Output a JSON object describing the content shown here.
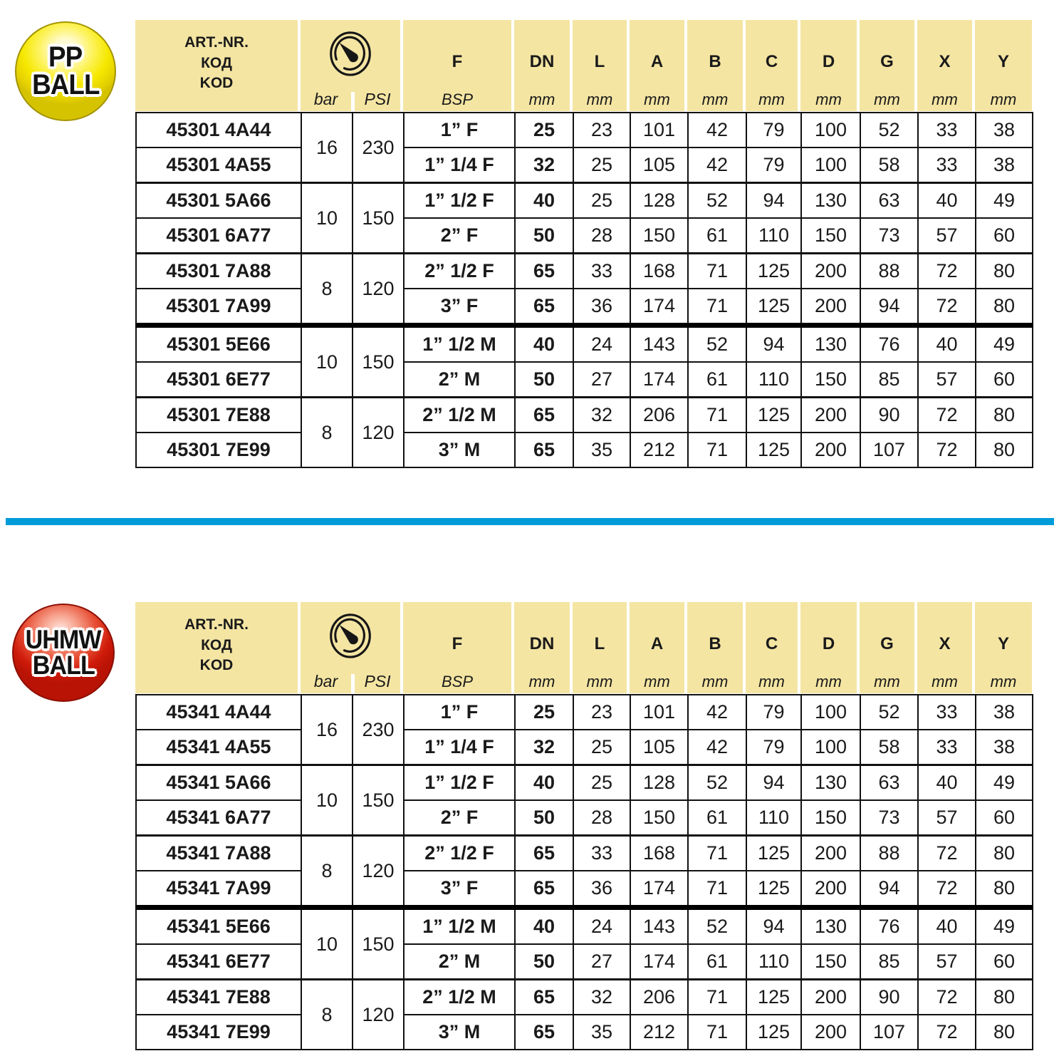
{
  "colors": {
    "header_bg": "#f4e5a3",
    "divider_blue": "#009cd9",
    "pp_badge_yellow": "#f6e800",
    "uhmw_badge_red": "#ce1a0a",
    "border_black": "#111111"
  },
  "header": {
    "art_lines": [
      "ART.-NR.",
      "КОД",
      "KOD"
    ],
    "gauge_icon": "pressure-gauge-icon",
    "bar_label": "bar",
    "psi_label": "PSI",
    "columns": [
      {
        "label": "F",
        "sub": "BSP"
      },
      {
        "label": "DN",
        "sub": "mm"
      },
      {
        "label": "L",
        "sub": "mm"
      },
      {
        "label": "A",
        "sub": "mm"
      },
      {
        "label": "B",
        "sub": "mm"
      },
      {
        "label": "C",
        "sub": "mm"
      },
      {
        "label": "D",
        "sub": "mm"
      },
      {
        "label": "G",
        "sub": "mm"
      },
      {
        "label": "X",
        "sub": "mm"
      },
      {
        "label": "Y",
        "sub": "mm"
      }
    ]
  },
  "tables": [
    {
      "badge": {
        "line1": "PP",
        "line2": "BALL",
        "color": "yellow"
      },
      "pressure_groups": [
        {
          "bar": "16",
          "psi": "230"
        },
        {
          "bar": "10",
          "psi": "150"
        },
        {
          "bar": "8",
          "psi": "120"
        },
        {
          "bar": "10",
          "psi": "150"
        },
        {
          "bar": "8",
          "psi": "120"
        }
      ],
      "rows": [
        {
          "art": "45301 4A44",
          "f": "1” F",
          "dn": "25",
          "l": "23",
          "a": "101",
          "b": "42",
          "c": "79",
          "d": "100",
          "g": "52",
          "x": "33",
          "y": "38"
        },
        {
          "art": "45301 4A55",
          "f": "1” 1/4 F",
          "dn": "32",
          "l": "25",
          "a": "105",
          "b": "42",
          "c": "79",
          "d": "100",
          "g": "58",
          "x": "33",
          "y": "38"
        },
        {
          "art": "45301 5A66",
          "f": "1” 1/2 F",
          "dn": "40",
          "l": "25",
          "a": "128",
          "b": "52",
          "c": "94",
          "d": "130",
          "g": "63",
          "x": "40",
          "y": "49"
        },
        {
          "art": "45301 6A77",
          "f": "2” F",
          "dn": "50",
          "l": "28",
          "a": "150",
          "b": "61",
          "c": "110",
          "d": "150",
          "g": "73",
          "x": "57",
          "y": "60"
        },
        {
          "art": "45301 7A88",
          "f": "2” 1/2 F",
          "dn": "65",
          "l": "33",
          "a": "168",
          "b": "71",
          "c": "125",
          "d": "200",
          "g": "88",
          "x": "72",
          "y": "80"
        },
        {
          "art": "45301 7A99",
          "f": "3” F",
          "dn": "65",
          "l": "36",
          "a": "174",
          "b": "71",
          "c": "125",
          "d": "200",
          "g": "94",
          "x": "72",
          "y": "80"
        },
        {
          "art": "45301 5E66",
          "f": "1” 1/2 M",
          "dn": "40",
          "l": "24",
          "a": "143",
          "b": "52",
          "c": "94",
          "d": "130",
          "g": "76",
          "x": "40",
          "y": "49"
        },
        {
          "art": "45301 6E77",
          "f": "2” M",
          "dn": "50",
          "l": "27",
          "a": "174",
          "b": "61",
          "c": "110",
          "d": "150",
          "g": "85",
          "x": "57",
          "y": "60"
        },
        {
          "art": "45301 7E88",
          "f": "2” 1/2 M",
          "dn": "65",
          "l": "32",
          "a": "206",
          "b": "71",
          "c": "125",
          "d": "200",
          "g": "90",
          "x": "72",
          "y": "80"
        },
        {
          "art": "45301 7E99",
          "f": "3” M",
          "dn": "65",
          "l": "35",
          "a": "212",
          "b": "71",
          "c": "125",
          "d": "200",
          "g": "107",
          "x": "72",
          "y": "80"
        }
      ]
    },
    {
      "badge": {
        "line1": "UHMW",
        "line2": "BALL",
        "color": "red"
      },
      "pressure_groups": [
        {
          "bar": "16",
          "psi": "230"
        },
        {
          "bar": "10",
          "psi": "150"
        },
        {
          "bar": "8",
          "psi": "120"
        },
        {
          "bar": "10",
          "psi": "150"
        },
        {
          "bar": "8",
          "psi": "120"
        }
      ],
      "rows": [
        {
          "art": "45341 4A44",
          "f": "1” F",
          "dn": "25",
          "l": "23",
          "a": "101",
          "b": "42",
          "c": "79",
          "d": "100",
          "g": "52",
          "x": "33",
          "y": "38"
        },
        {
          "art": "45341 4A55",
          "f": "1” 1/4 F",
          "dn": "32",
          "l": "25",
          "a": "105",
          "b": "42",
          "c": "79",
          "d": "100",
          "g": "58",
          "x": "33",
          "y": "38"
        },
        {
          "art": "45341 5A66",
          "f": "1” 1/2 F",
          "dn": "40",
          "l": "25",
          "a": "128",
          "b": "52",
          "c": "94",
          "d": "130",
          "g": "63",
          "x": "40",
          "y": "49"
        },
        {
          "art": "45341 6A77",
          "f": "2” F",
          "dn": "50",
          "l": "28",
          "a": "150",
          "b": "61",
          "c": "110",
          "d": "150",
          "g": "73",
          "x": "57",
          "y": "60"
        },
        {
          "art": "45341 7A88",
          "f": "2” 1/2 F",
          "dn": "65",
          "l": "33",
          "a": "168",
          "b": "71",
          "c": "125",
          "d": "200",
          "g": "88",
          "x": "72",
          "y": "80"
        },
        {
          "art": "45341 7A99",
          "f": "3” F",
          "dn": "65",
          "l": "36",
          "a": "174",
          "b": "71",
          "c": "125",
          "d": "200",
          "g": "94",
          "x": "72",
          "y": "80"
        },
        {
          "art": "45341 5E66",
          "f": "1” 1/2 M",
          "dn": "40",
          "l": "24",
          "a": "143",
          "b": "52",
          "c": "94",
          "d": "130",
          "g": "76",
          "x": "40",
          "y": "49"
        },
        {
          "art": "45341 6E77",
          "f": "2” M",
          "dn": "50",
          "l": "27",
          "a": "174",
          "b": "61",
          "c": "110",
          "d": "150",
          "g": "85",
          "x": "57",
          "y": "60"
        },
        {
          "art": "45341 7E88",
          "f": "2” 1/2 M",
          "dn": "65",
          "l": "32",
          "a": "206",
          "b": "71",
          "c": "125",
          "d": "200",
          "g": "90",
          "x": "72",
          "y": "80"
        },
        {
          "art": "45341 7E99",
          "f": "3” M",
          "dn": "65",
          "l": "35",
          "a": "212",
          "b": "71",
          "c": "125",
          "d": "200",
          "g": "107",
          "x": "72",
          "y": "80"
        }
      ]
    }
  ]
}
